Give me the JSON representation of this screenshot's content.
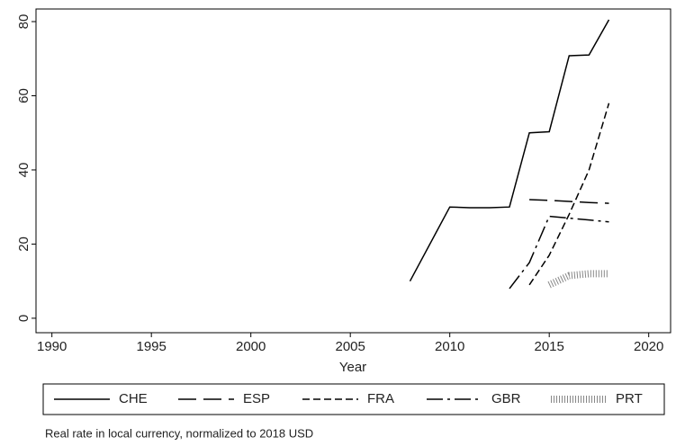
{
  "chart_data": {
    "type": "line",
    "x": [
      2008,
      2010,
      2011,
      2012,
      2013,
      2014,
      2015,
      2016,
      2017,
      2018
    ],
    "series": [
      {
        "name": "CHE",
        "color": "#000000",
        "dash": "none",
        "values": [
          10,
          30,
          29.8,
          29.8,
          30,
          50,
          50.3,
          70.8,
          71,
          80.5
        ]
      },
      {
        "name": "ESP",
        "color": "#000000",
        "dash": "20 8",
        "values": [
          null,
          null,
          null,
          null,
          null,
          32,
          31.8,
          31.5,
          31.2,
          31
        ]
      },
      {
        "name": "FRA",
        "color": "#000000",
        "dash": "8 4",
        "values": [
          null,
          null,
          null,
          null,
          null,
          9,
          17,
          28,
          40,
          58
        ]
      },
      {
        "name": "GBR",
        "color": "#000000",
        "dash": "18 5 3 5",
        "values": [
          null,
          null,
          null,
          null,
          8,
          15,
          27.5,
          27,
          26.5,
          26
        ]
      },
      {
        "name": "PRT",
        "color": "#888888",
        "dash": "1 2",
        "values": [
          null,
          null,
          null,
          null,
          null,
          null,
          9,
          11.5,
          12,
          12
        ]
      }
    ],
    "xlabel": "Year",
    "xlim": [
      1989.2,
      2021.1
    ],
    "xticks": [
      1990,
      1995,
      2000,
      2005,
      2010,
      2015,
      2020
    ],
    "ylim": [
      -3.9,
      83.4
    ],
    "yticks": [
      0,
      20,
      40,
      60,
      80
    ],
    "note": "Real rate in local currency, normalized to 2018 USD"
  }
}
